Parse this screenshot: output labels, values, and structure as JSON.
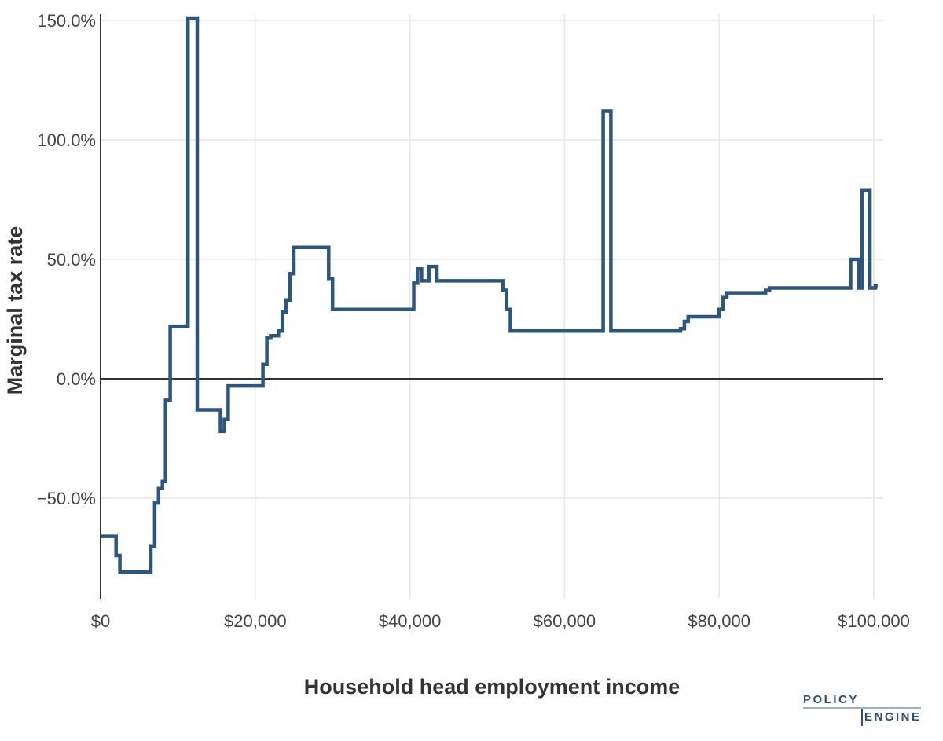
{
  "chart_data": {
    "type": "line",
    "title": "",
    "xlabel": "Household head employment income",
    "ylabel": "Marginal tax rate",
    "xlim": [
      0,
      100500
    ],
    "ylim": [
      -93,
      151
    ],
    "x_ticks": [
      0,
      20000,
      40000,
      60000,
      80000,
      100000
    ],
    "x_tick_labels": [
      "$0",
      "$20,000",
      "$40,000",
      "$60,000",
      "$80,000",
      "$100,000"
    ],
    "y_ticks": [
      150,
      100,
      50,
      0,
      -50
    ],
    "y_tick_labels": [
      "150.0%",
      "100.0%",
      "50.0%",
      "0.0%",
      "−50.0%"
    ],
    "grid": true,
    "line_color": "#2c5580",
    "series": [
      {
        "points": [
          [
            0,
            -66
          ],
          [
            2000,
            -66
          ],
          [
            2000,
            -74
          ],
          [
            2500,
            -74
          ],
          [
            2500,
            -81
          ],
          [
            6500,
            -81
          ],
          [
            6500,
            -70
          ],
          [
            7000,
            -70
          ],
          [
            7000,
            -52
          ],
          [
            7500,
            -52
          ],
          [
            7500,
            -46
          ],
          [
            8000,
            -46
          ],
          [
            8000,
            -43
          ],
          [
            8400,
            -43
          ],
          [
            8400,
            -9
          ],
          [
            9000,
            -9
          ],
          [
            9000,
            22
          ],
          [
            10500,
            22
          ],
          [
            10500,
            22
          ],
          [
            11300,
            22
          ],
          [
            11300,
            151
          ],
          [
            12500,
            151
          ],
          [
            12500,
            -13
          ],
          [
            15500,
            -13
          ],
          [
            15500,
            -22
          ],
          [
            16000,
            -22
          ],
          [
            16000,
            -17
          ],
          [
            16500,
            -17
          ],
          [
            16500,
            -3
          ],
          [
            17000,
            -3
          ],
          [
            17000,
            -3
          ],
          [
            21000,
            -3
          ],
          [
            21000,
            6
          ],
          [
            21500,
            6
          ],
          [
            21500,
            17
          ],
          [
            22000,
            17
          ],
          [
            22000,
            18
          ],
          [
            23000,
            18
          ],
          [
            23000,
            20
          ],
          [
            23500,
            20
          ],
          [
            23500,
            28
          ],
          [
            24000,
            28
          ],
          [
            24000,
            33
          ],
          [
            24500,
            33
          ],
          [
            24500,
            44
          ],
          [
            25000,
            44
          ],
          [
            25000,
            55
          ],
          [
            29500,
            55
          ],
          [
            29500,
            42
          ],
          [
            30000,
            42
          ],
          [
            30000,
            29
          ],
          [
            40500,
            29
          ],
          [
            40500,
            40
          ],
          [
            41000,
            40
          ],
          [
            41000,
            46
          ],
          [
            41500,
            46
          ],
          [
            41500,
            41
          ],
          [
            42500,
            41
          ],
          [
            42500,
            47
          ],
          [
            43500,
            47
          ],
          [
            43500,
            41
          ],
          [
            52000,
            41
          ],
          [
            52000,
            37
          ],
          [
            52500,
            37
          ],
          [
            52500,
            29
          ],
          [
            53000,
            29
          ],
          [
            53000,
            20
          ],
          [
            65000,
            20
          ],
          [
            65000,
            112
          ],
          [
            66000,
            112
          ],
          [
            66000,
            20
          ],
          [
            75000,
            20
          ],
          [
            75000,
            21
          ],
          [
            75500,
            21
          ],
          [
            75500,
            24
          ],
          [
            76000,
            24
          ],
          [
            76000,
            26
          ],
          [
            80000,
            26
          ],
          [
            80000,
            29
          ],
          [
            80500,
            29
          ],
          [
            80500,
            34
          ],
          [
            81000,
            34
          ],
          [
            81000,
            36
          ],
          [
            86000,
            36
          ],
          [
            86000,
            37
          ],
          [
            86500,
            37
          ],
          [
            86500,
            38
          ],
          [
            97000,
            38
          ],
          [
            97000,
            50
          ],
          [
            98000,
            50
          ],
          [
            98000,
            38
          ],
          [
            98500,
            38
          ],
          [
            98500,
            79
          ],
          [
            99500,
            79
          ],
          [
            99500,
            38
          ],
          [
            100200,
            38
          ],
          [
            100200,
            39
          ],
          [
            100500,
            39
          ]
        ]
      }
    ]
  },
  "logo": {
    "word1": "POLICY",
    "word2": "ENGINE"
  }
}
